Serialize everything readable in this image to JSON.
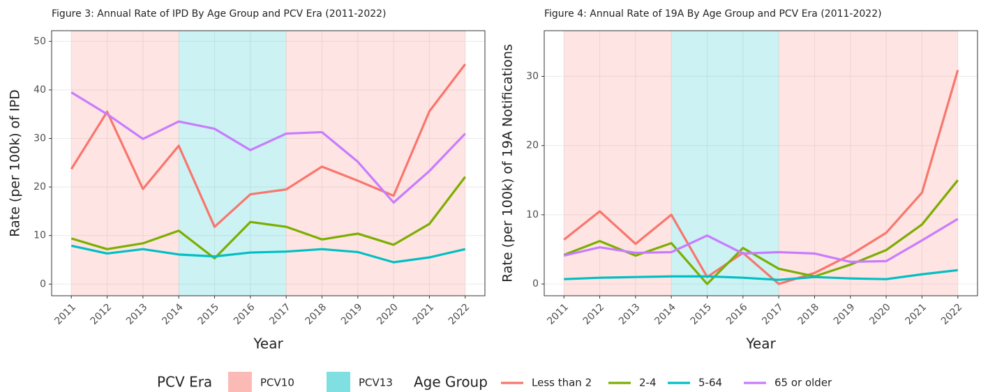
{
  "chart_data": [
    {
      "type": "line",
      "title": "Figure 3: Annual Rate of IPD By Age Group and PCV Era (2011-2022)",
      "x_label": "Year",
      "y_label": "Rate (per 100k) of IPD",
      "x": [
        2011,
        2012,
        2013,
        2014,
        2015,
        2016,
        2017,
        2018,
        2019,
        2020,
        2021,
        2022
      ],
      "xlim": [
        2010.45,
        2022.55
      ],
      "xticks": [
        2011,
        2012,
        2013,
        2014,
        2015,
        2016,
        2017,
        2018,
        2019,
        2020,
        2021,
        2022
      ],
      "ylim": [
        -2.4,
        52.2
      ],
      "yticks": [
        0,
        10,
        20,
        30,
        40,
        50
      ],
      "grid": true,
      "shading": [
        {
          "name": "PCV10",
          "color": "#F8766D",
          "start": 2011,
          "end": 2014
        },
        {
          "name": "PCV13",
          "color": "#00BFC4",
          "start": 2014,
          "end": 2017
        },
        {
          "name": "PCV10",
          "color": "#F8766D",
          "start": 2017,
          "end": 2022
        }
      ],
      "series": [
        {
          "name": "Less than 2",
          "color": "#F8766D",
          "values": [
            23.7,
            35.5,
            19.6,
            28.5,
            11.8,
            18.5,
            19.5,
            24.2,
            21.3,
            18.2,
            35.6,
            45.3
          ]
        },
        {
          "name": "2-4",
          "color": "#7CAE00",
          "values": [
            9.4,
            7.2,
            8.4,
            11.0,
            5.3,
            12.8,
            11.8,
            9.2,
            10.4,
            8.1,
            12.4,
            22.1
          ]
        },
        {
          "name": "5-64",
          "color": "#00BFC4",
          "values": [
            7.9,
            6.3,
            7.2,
            6.1,
            5.7,
            6.5,
            6.7,
            7.2,
            6.6,
            4.5,
            5.5,
            7.2
          ]
        },
        {
          "name": "65 or older",
          "color": "#C77CFF",
          "values": [
            39.5,
            35.0,
            29.9,
            33.5,
            32.0,
            27.6,
            31.0,
            31.3,
            25.2,
            16.8,
            23.3,
            31.0
          ]
        }
      ]
    },
    {
      "type": "line",
      "title": "Figure 4: Annual Rate of 19A By Age Group and PCV Era (2011-2022)",
      "x_label": "Year",
      "y_label": "Rate (per 100k) of 19A Notifications",
      "x": [
        2011,
        2012,
        2013,
        2014,
        2015,
        2016,
        2017,
        2018,
        2019,
        2020,
        2021,
        2022
      ],
      "xlim": [
        2010.45,
        2022.55
      ],
      "xticks": [
        2011,
        2012,
        2013,
        2014,
        2015,
        2016,
        2017,
        2018,
        2019,
        2020,
        2021,
        2022
      ],
      "ylim": [
        -1.7,
        36.6
      ],
      "yticks": [
        0,
        10,
        20,
        30
      ],
      "grid": true,
      "shading": [
        {
          "name": "PCV10",
          "color": "#F8766D",
          "start": 2011,
          "end": 2014
        },
        {
          "name": "PCV13",
          "color": "#00BFC4",
          "start": 2014,
          "end": 2017
        },
        {
          "name": "PCV10",
          "color": "#F8766D",
          "start": 2017,
          "end": 2022
        }
      ],
      "series": [
        {
          "name": "Less than 2",
          "color": "#F8766D",
          "values": [
            6.4,
            10.5,
            5.8,
            10.0,
            1.0,
            4.5,
            0.0,
            1.6,
            4.2,
            7.4,
            13.2,
            30.9
          ]
        },
        {
          "name": "2-4",
          "color": "#7CAE00",
          "values": [
            4.2,
            6.2,
            4.1,
            5.9,
            0.0,
            5.2,
            2.2,
            1.1,
            2.8,
            4.9,
            8.6,
            15.0
          ]
        },
        {
          "name": "5-64",
          "color": "#00BFC4",
          "values": [
            0.7,
            0.9,
            1.0,
            1.1,
            1.1,
            0.9,
            0.6,
            1.0,
            0.8,
            0.7,
            1.4,
            2.0
          ]
        },
        {
          "name": "65 or older",
          "color": "#C77CFF",
          "values": [
            4.1,
            5.3,
            4.5,
            4.6,
            7.0,
            4.4,
            4.6,
            4.4,
            3.2,
            3.3,
            6.3,
            9.4
          ]
        }
      ]
    }
  ],
  "legend": {
    "shading_title": "PCV Era",
    "series_title": "Age Group"
  }
}
